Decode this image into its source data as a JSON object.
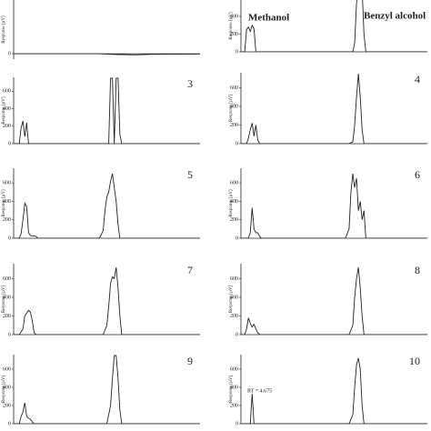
{
  "chart_data": [
    {
      "type": "line",
      "y_label": "Response [µV]",
      "xlim": [
        0,
        100
      ],
      "ylim": [
        -60,
        600
      ],
      "yticks": [
        0
      ],
      "color": "#222",
      "x": [
        0,
        45,
        55,
        65,
        75,
        100
      ],
      "values": [
        0,
        0,
        -8,
        -12,
        -6,
        -4
      ]
    },
    {
      "type": "line",
      "y_label": "Response [µV]",
      "xlim": [
        0,
        100
      ],
      "ylim": [
        0,
        585
      ],
      "yticks": [
        0,
        200,
        400
      ],
      "color": "#222",
      "annotations": [
        "Methanol",
        "Benzyl alcohol"
      ],
      "x": [
        0,
        2,
        3,
        4,
        5,
        6,
        7,
        8,
        9,
        60,
        61,
        62,
        63,
        64,
        65,
        66,
        67,
        100
      ],
      "values": [
        0,
        0,
        250,
        280,
        230,
        300,
        260,
        0,
        0,
        0,
        100,
        550,
        700,
        600,
        700,
        200,
        0,
        0
      ]
    },
    {
      "type": "line",
      "panel_label": "3",
      "y_label": "Response [µV]",
      "xlim": [
        0,
        100
      ],
      "ylim": [
        0,
        760
      ],
      "yticks": [
        0,
        200,
        400,
        600
      ],
      "color": "#222",
      "x": [
        0,
        3,
        4,
        5,
        6,
        7,
        8,
        9,
        50,
        51,
        52,
        53,
        54,
        55,
        56,
        57,
        58,
        100
      ],
      "values": [
        0,
        0,
        180,
        260,
        80,
        240,
        0,
        0,
        0,
        0,
        750,
        750,
        0,
        750,
        750,
        100,
        0,
        0
      ]
    },
    {
      "type": "line",
      "panel_label": "4",
      "y_label": "Response [µV]",
      "xlim": [
        0,
        100
      ],
      "ylim": [
        0,
        760
      ],
      "yticks": [
        0,
        200,
        400,
        600
      ],
      "color": "#222",
      "x": [
        0,
        3,
        4,
        5,
        6,
        7,
        8,
        9,
        10,
        58,
        60,
        61,
        62,
        63,
        64,
        65,
        66,
        100
      ],
      "values": [
        0,
        0,
        60,
        150,
        220,
        80,
        200,
        40,
        0,
        0,
        20,
        200,
        500,
        750,
        500,
        150,
        0,
        0
      ]
    },
    {
      "type": "line",
      "panel_label": "5",
      "y_label": "Response [µV]",
      "xlim": [
        0,
        100
      ],
      "ylim": [
        0,
        760
      ],
      "yticks": [
        0,
        200,
        400,
        600
      ],
      "color": "#222",
      "x": [
        0,
        3,
        4,
        5,
        6,
        7,
        8,
        9,
        12,
        13,
        46,
        48,
        49,
        50,
        51,
        52,
        53,
        54,
        55,
        56,
        57,
        100
      ],
      "values": [
        0,
        0,
        50,
        200,
        380,
        340,
        60,
        30,
        20,
        0,
        0,
        80,
        300,
        450,
        500,
        620,
        700,
        550,
        400,
        150,
        0,
        0
      ]
    },
    {
      "type": "line",
      "panel_label": "6",
      "y_label": "Response [µV]",
      "xlim": [
        0,
        100
      ],
      "ylim": [
        0,
        760
      ],
      "yticks": [
        0,
        200,
        400,
        600
      ],
      "color": "#222",
      "x": [
        0,
        4,
        5,
        6,
        7,
        8,
        9,
        10,
        11,
        56,
        58,
        59,
        60,
        61,
        62,
        63,
        64,
        65,
        66,
        67,
        100
      ],
      "values": [
        0,
        0,
        60,
        330,
        100,
        60,
        60,
        20,
        0,
        0,
        100,
        500,
        700,
        550,
        650,
        300,
        400,
        200,
        300,
        0,
        0
      ]
    },
    {
      "type": "line",
      "panel_label": "7",
      "y_label": "Response [µV]",
      "xlim": [
        0,
        100
      ],
      "ylim": [
        0,
        760
      ],
      "yticks": [
        0,
        200,
        400,
        600
      ],
      "color": "#222",
      "x": [
        0,
        3,
        5,
        6,
        7,
        8,
        9,
        10,
        11,
        12,
        48,
        50,
        51,
        52,
        53,
        54,
        55,
        56,
        57,
        58,
        100
      ],
      "values": [
        0,
        0,
        60,
        200,
        230,
        260,
        240,
        150,
        20,
        0,
        0,
        100,
        300,
        550,
        620,
        600,
        720,
        500,
        200,
        0,
        0
      ]
    },
    {
      "type": "line",
      "panel_label": "8",
      "y_label": "Response [µV]",
      "xlim": [
        0,
        100
      ],
      "ylim": [
        0,
        760
      ],
      "yticks": [
        0,
        200,
        400,
        600
      ],
      "color": "#222",
      "x": [
        0,
        2,
        3,
        4,
        5,
        6,
        7,
        8,
        9,
        10,
        58,
        60,
        61,
        62,
        63,
        64,
        65,
        66,
        100
      ],
      "values": [
        0,
        0,
        60,
        180,
        120,
        80,
        110,
        60,
        20,
        0,
        0,
        100,
        400,
        600,
        720,
        500,
        200,
        0,
        0
      ]
    },
    {
      "type": "line",
      "panel_label": "9",
      "y_label": "Response [µV]",
      "xlim": [
        0,
        100
      ],
      "ylim": [
        0,
        760
      ],
      "yticks": [
        0,
        200,
        400,
        600
      ],
      "color": "#222",
      "x": [
        0,
        3,
        4,
        5,
        6,
        7,
        8,
        9,
        10,
        11,
        50,
        52,
        53,
        54,
        55,
        56,
        57,
        58,
        100
      ],
      "values": [
        0,
        0,
        80,
        130,
        230,
        80,
        60,
        50,
        20,
        0,
        0,
        200,
        500,
        750,
        750,
        500,
        150,
        0,
        0
      ]
    },
    {
      "type": "line",
      "panel_label": "10",
      "y_label": "Response [µV]",
      "xlim": [
        0,
        100
      ],
      "ylim": [
        0,
        760
      ],
      "yticks": [
        0,
        200,
        400,
        600
      ],
      "color": "#222",
      "annotations": [
        "RT = 4.675"
      ],
      "x": [
        0,
        4,
        5,
        6,
        7,
        8,
        58,
        60,
        61,
        62,
        63,
        64,
        65,
        66,
        100
      ],
      "values": [
        0,
        0,
        0,
        330,
        0,
        0,
        0,
        100,
        400,
        650,
        720,
        600,
        200,
        0,
        0
      ]
    }
  ]
}
